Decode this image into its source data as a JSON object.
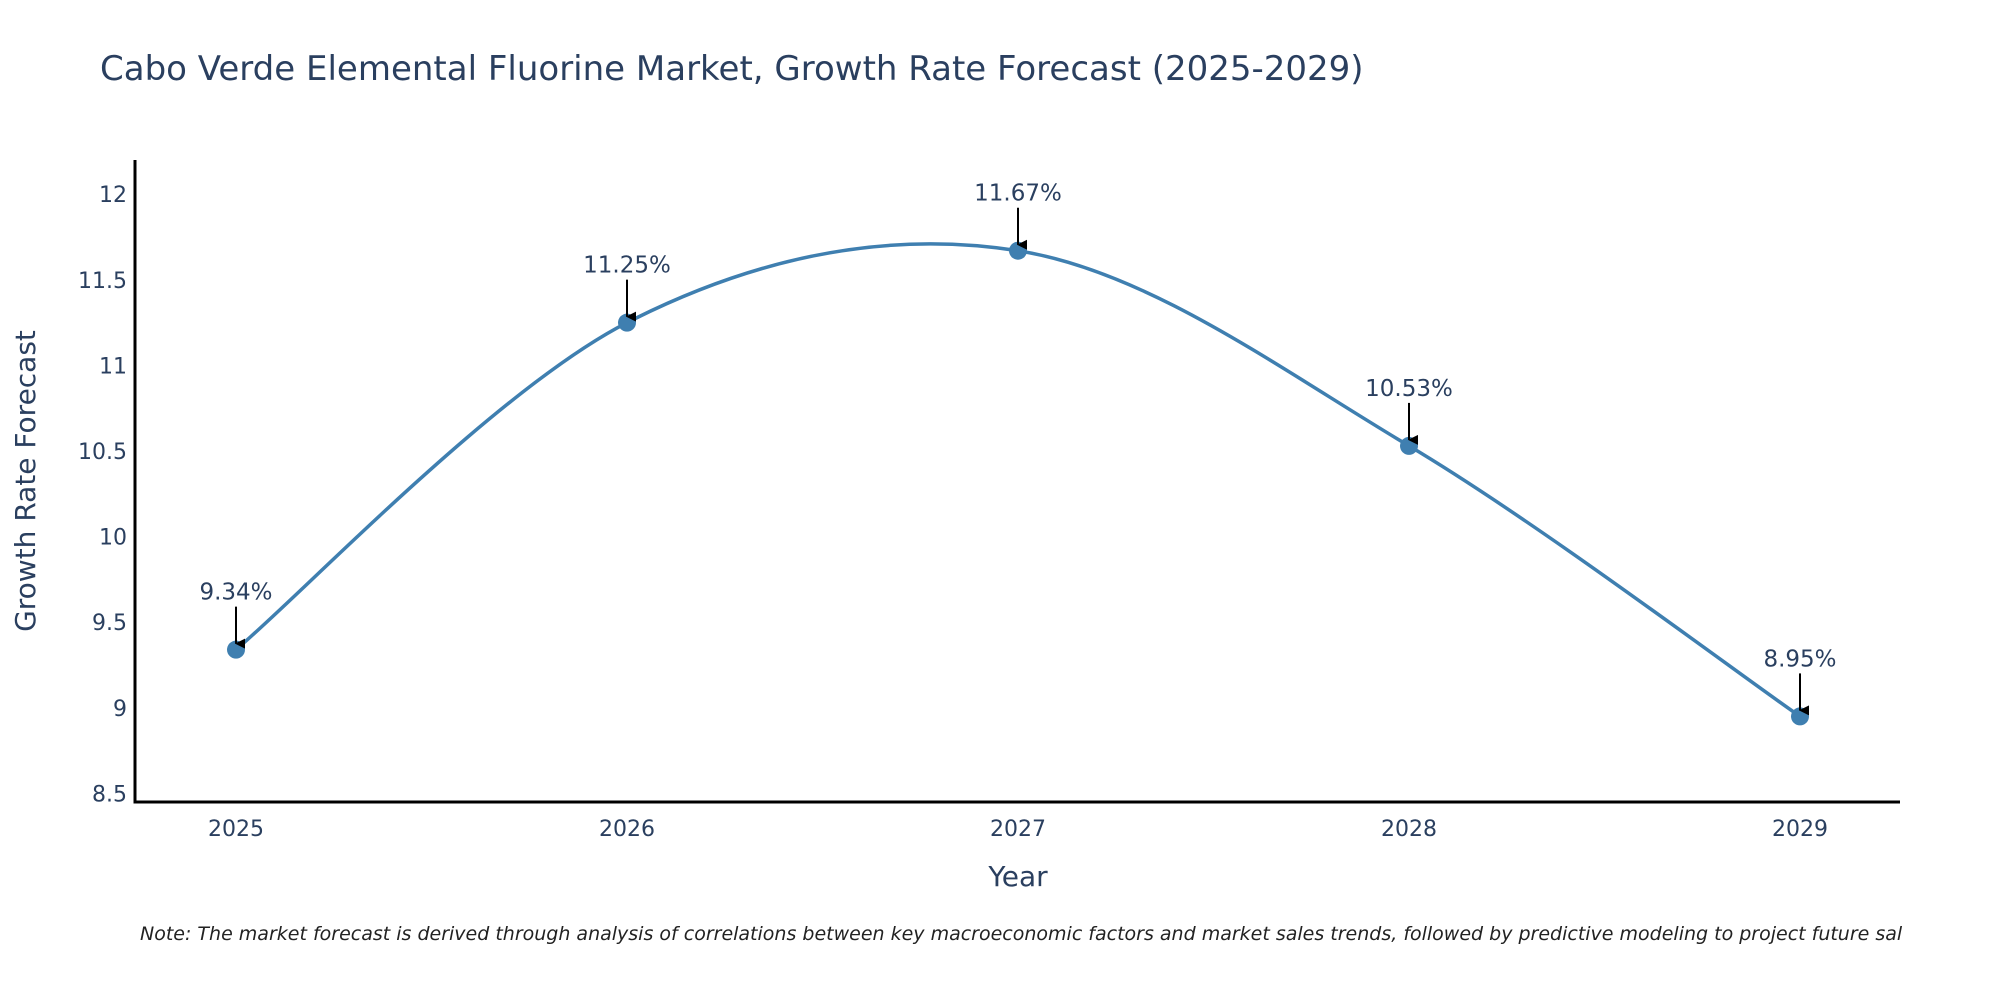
{
  "colors": {
    "line": "#3f7fb0",
    "marker": "#3f7fb0",
    "arrow": "#000000",
    "text": "#2a3f5f",
    "axis": "#000000"
  },
  "chart_data": {
    "type": "line",
    "title": "Cabo Verde Elemental Fluorine Market, Growth Rate Forecast (2025-2029)",
    "xlabel": "Year",
    "ylabel": "Growth Rate Forecast",
    "categories": [
      "2025",
      "2026",
      "2027",
      "2028",
      "2029"
    ],
    "values": [
      9.34,
      11.25,
      11.67,
      10.53,
      8.95
    ],
    "data_labels": [
      "9.34%",
      "11.25%",
      "11.67%",
      "10.53%",
      "8.95%"
    ],
    "ylim": [
      8.45,
      12.2
    ],
    "yticks": [
      8.5,
      9,
      9.5,
      10,
      10.5,
      11,
      11.5,
      12
    ],
    "ytick_labels": [
      "8.5",
      "9",
      "9.5",
      "10",
      "10.5",
      "11",
      "11.5",
      "12"
    ],
    "grid": false,
    "line_shape": "spline",
    "annotation_arrows": true
  },
  "note": "Note: The market forecast is derived through analysis of correlations between key macroeconomic factors and market sales trends, followed by predictive modeling to project future sal"
}
